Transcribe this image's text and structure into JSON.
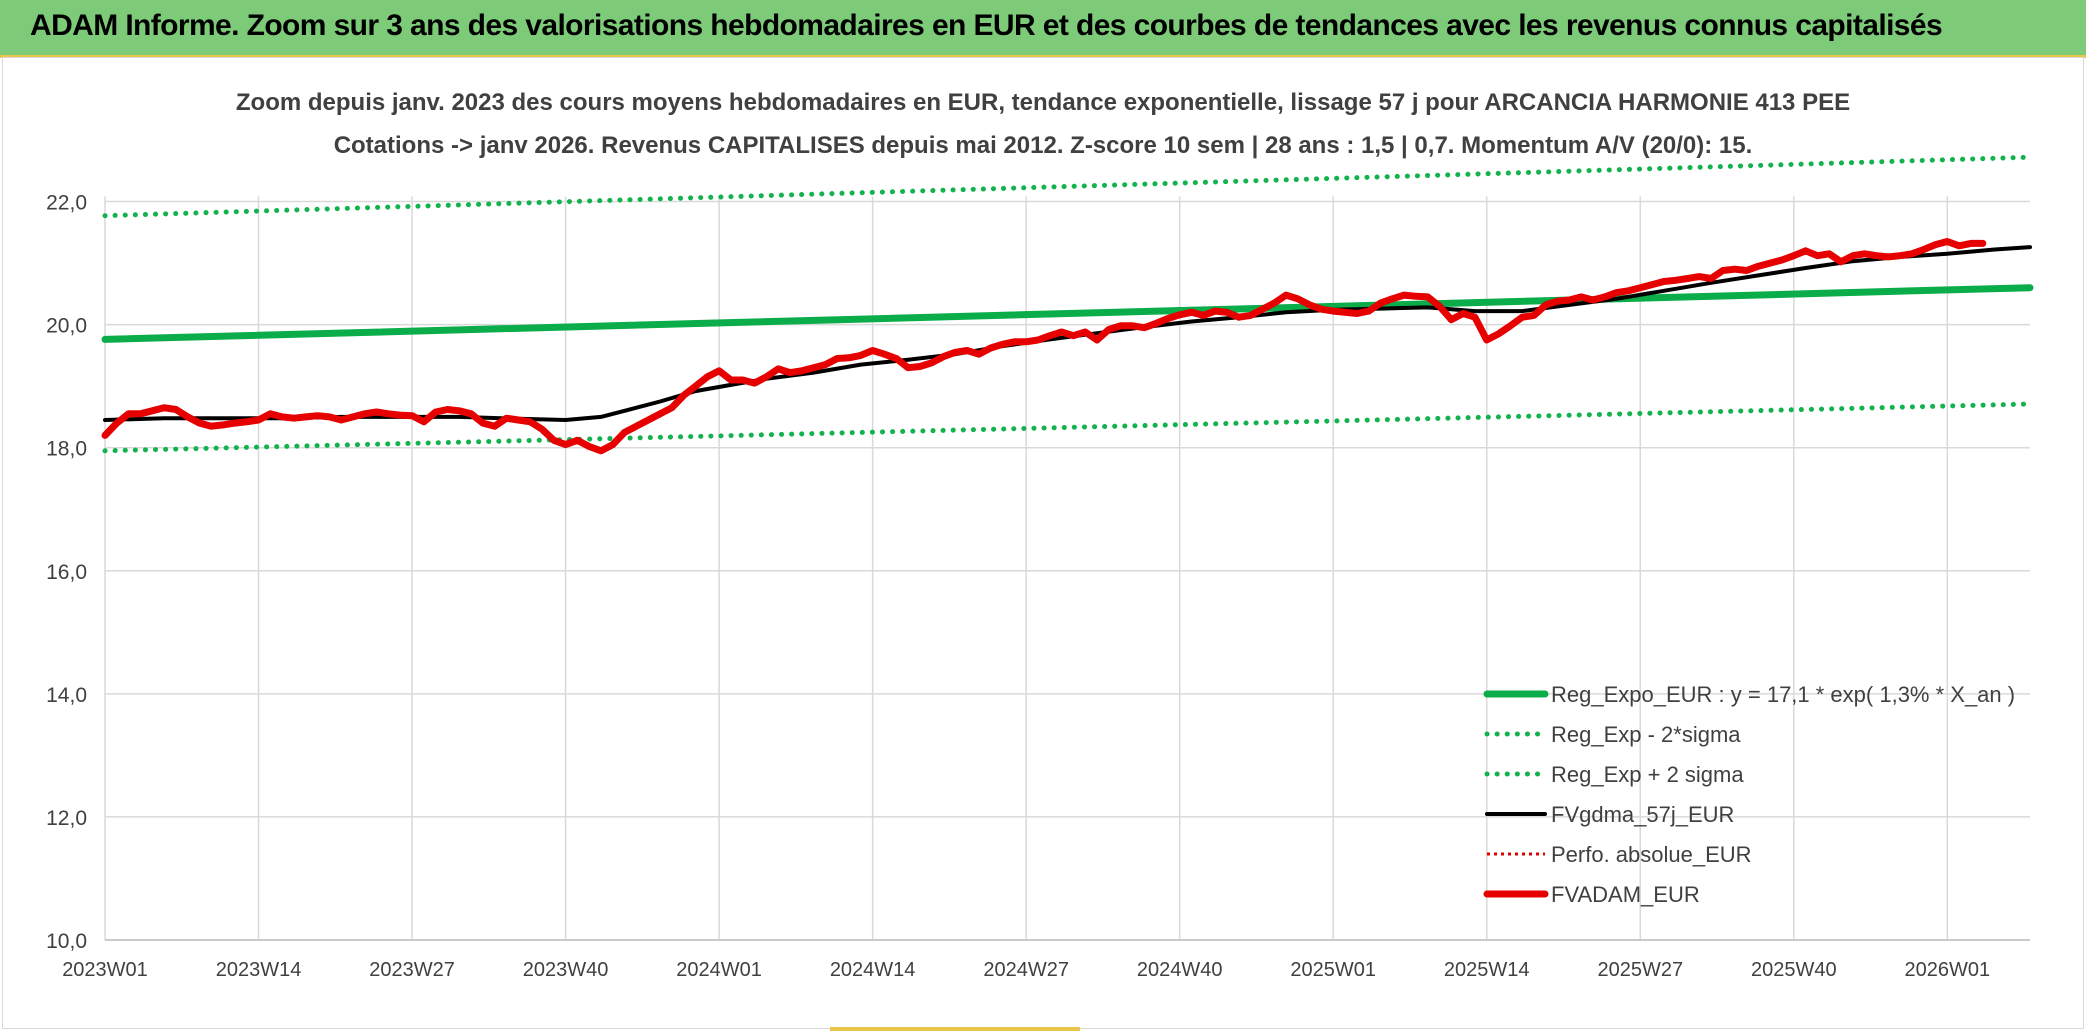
{
  "header": {
    "title": "ADAM Informe. Zoom sur 3 ans des valorisations hebdomadaires en EUR et des courbes de tendances avec les revenus connus capitalisés"
  },
  "colors": {
    "header_bg": "#7dcb78",
    "reg_expo": "#0aad4a",
    "sigma": "#12b24c",
    "fvgdma": "#000000",
    "perfo": "#e00000",
    "fvadam": "#e60000",
    "grid": "#d9d9d9",
    "text": "#404040"
  },
  "chart_data": {
    "type": "line",
    "title": "Zoom depuis janv. 2023 des cours moyens hebdomadaires en EUR, tendance exponentielle, lissage 57 j pour ARCANCIA HARMONIE 413 PEE",
    "subtitle": "Cotations -> janv 2026. Revenus CAPITALISES depuis mai 2012. Z-score 10 sem | 28 ans : 1,5 | 0,7. Momentum A/V (20/0): 15.",
    "xlabel": "",
    "ylabel": "",
    "ylim": [
      10,
      23
    ],
    "yticks": [
      "10,0",
      "12,0",
      "14,0",
      "16,0",
      "18,0",
      "20,0",
      "22,0"
    ],
    "ytick_values": [
      10,
      12,
      14,
      16,
      18,
      20,
      22
    ],
    "x_range": [
      0,
      163
    ],
    "xticks": [
      {
        "i": 0,
        "label": "2023W01"
      },
      {
        "i": 13,
        "label": "2023W14"
      },
      {
        "i": 26,
        "label": "2023W27"
      },
      {
        "i": 39,
        "label": "2023W40"
      },
      {
        "i": 52,
        "label": "2024W01"
      },
      {
        "i": 65,
        "label": "2024W14"
      },
      {
        "i": 78,
        "label": "2024W27"
      },
      {
        "i": 91,
        "label": "2024W40"
      },
      {
        "i": 104,
        "label": "2025W01"
      },
      {
        "i": 117,
        "label": "2025W14"
      },
      {
        "i": 130,
        "label": "2025W27"
      },
      {
        "i": 143,
        "label": "2025W40"
      },
      {
        "i": 156,
        "label": "2026W01"
      }
    ],
    "grid": true,
    "legend_position": "bottom-right",
    "series": [
      {
        "name": "Reg_Expo_EUR : y = 17,1 * exp( 1,3% *  X_an )",
        "style": "solid-thick",
        "color": "#0aad4a",
        "points": [
          [
            0,
            19.76
          ],
          [
            163,
            20.6
          ]
        ]
      },
      {
        "name": "Reg_Exp - 2*sigma",
        "style": "dotted",
        "color": "#12b24c",
        "points": [
          [
            0,
            17.95
          ],
          [
            163,
            18.71
          ]
        ]
      },
      {
        "name": "Reg_Exp + 2 sigma",
        "style": "dotted",
        "color": "#12b24c",
        "points": [
          [
            0,
            21.77
          ],
          [
            163,
            22.72
          ]
        ]
      },
      {
        "name": "FVgdma_57j_EUR",
        "style": "solid",
        "color": "#000000",
        "points": [
          [
            0,
            18.45
          ],
          [
            5,
            18.48
          ],
          [
            10,
            18.48
          ],
          [
            15,
            18.48
          ],
          [
            20,
            18.5
          ],
          [
            25,
            18.5
          ],
          [
            30,
            18.5
          ],
          [
            35,
            18.47
          ],
          [
            39,
            18.45
          ],
          [
            42,
            18.5
          ],
          [
            44,
            18.6
          ],
          [
            47,
            18.75
          ],
          [
            50,
            18.92
          ],
          [
            53,
            19.02
          ],
          [
            56,
            19.12
          ],
          [
            60,
            19.22
          ],
          [
            64,
            19.35
          ],
          [
            68,
            19.43
          ],
          [
            72,
            19.52
          ],
          [
            76,
            19.65
          ],
          [
            80,
            19.76
          ],
          [
            84,
            19.86
          ],
          [
            88,
            19.96
          ],
          [
            92,
            20.05
          ],
          [
            96,
            20.12
          ],
          [
            100,
            20.2
          ],
          [
            104,
            20.24
          ],
          [
            108,
            20.26
          ],
          [
            112,
            20.28
          ],
          [
            116,
            20.22
          ],
          [
            120,
            20.22
          ],
          [
            124,
            20.32
          ],
          [
            128,
            20.42
          ],
          [
            132,
            20.55
          ],
          [
            136,
            20.68
          ],
          [
            140,
            20.8
          ],
          [
            144,
            20.92
          ],
          [
            148,
            21.03
          ],
          [
            152,
            21.1
          ],
          [
            156,
            21.15
          ],
          [
            160,
            21.22
          ],
          [
            163,
            21.26
          ]
        ]
      },
      {
        "name": "Perfo. absolue_EUR",
        "style": "dotted-thin",
        "color": "#e00000",
        "points": []
      },
      {
        "name": "FVADAM_EUR",
        "style": "solid-thick",
        "color": "#e60000",
        "points": [
          [
            0,
            18.2
          ],
          [
            1,
            18.4
          ],
          [
            2,
            18.55
          ],
          [
            3,
            18.55
          ],
          [
            4,
            18.6
          ],
          [
            5,
            18.65
          ],
          [
            6,
            18.62
          ],
          [
            7,
            18.5
          ],
          [
            8,
            18.4
          ],
          [
            9,
            18.35
          ],
          [
            10,
            18.37
          ],
          [
            11,
            18.4
          ],
          [
            12,
            18.42
          ],
          [
            13,
            18.45
          ],
          [
            14,
            18.55
          ],
          [
            15,
            18.5
          ],
          [
            16,
            18.48
          ],
          [
            17,
            18.5
          ],
          [
            18,
            18.52
          ],
          [
            19,
            18.5
          ],
          [
            20,
            18.45
          ],
          [
            21,
            18.5
          ],
          [
            22,
            18.55
          ],
          [
            23,
            18.58
          ],
          [
            24,
            18.55
          ],
          [
            25,
            18.53
          ],
          [
            26,
            18.52
          ],
          [
            27,
            18.42
          ],
          [
            28,
            18.58
          ],
          [
            29,
            18.62
          ],
          [
            30,
            18.6
          ],
          [
            31,
            18.55
          ],
          [
            32,
            18.4
          ],
          [
            33,
            18.35
          ],
          [
            34,
            18.48
          ],
          [
            35,
            18.45
          ],
          [
            36,
            18.42
          ],
          [
            37,
            18.3
          ],
          [
            38,
            18.12
          ],
          [
            39,
            18.05
          ],
          [
            40,
            18.12
          ],
          [
            41,
            18.02
          ],
          [
            42,
            17.95
          ],
          [
            43,
            18.05
          ],
          [
            44,
            18.25
          ],
          [
            45,
            18.35
          ],
          [
            46,
            18.45
          ],
          [
            47,
            18.55
          ],
          [
            48,
            18.65
          ],
          [
            49,
            18.85
          ],
          [
            50,
            19.0
          ],
          [
            51,
            19.15
          ],
          [
            52,
            19.25
          ],
          [
            53,
            19.1
          ],
          [
            54,
            19.1
          ],
          [
            55,
            19.05
          ],
          [
            56,
            19.15
          ],
          [
            57,
            19.28
          ],
          [
            58,
            19.22
          ],
          [
            59,
            19.25
          ],
          [
            60,
            19.3
          ],
          [
            61,
            19.35
          ],
          [
            62,
            19.45
          ],
          [
            63,
            19.46
          ],
          [
            64,
            19.5
          ],
          [
            65,
            19.58
          ],
          [
            66,
            19.52
          ],
          [
            67,
            19.45
          ],
          [
            68,
            19.3
          ],
          [
            69,
            19.32
          ],
          [
            70,
            19.38
          ],
          [
            71,
            19.48
          ],
          [
            72,
            19.55
          ],
          [
            73,
            19.58
          ],
          [
            74,
            19.52
          ],
          [
            75,
            19.62
          ],
          [
            76,
            19.68
          ],
          [
            77,
            19.72
          ],
          [
            78,
            19.72
          ],
          [
            79,
            19.75
          ],
          [
            80,
            19.82
          ],
          [
            81,
            19.88
          ],
          [
            82,
            19.82
          ],
          [
            83,
            19.88
          ],
          [
            84,
            19.75
          ],
          [
            85,
            19.92
          ],
          [
            86,
            19.98
          ],
          [
            87,
            19.98
          ],
          [
            88,
            19.95
          ],
          [
            89,
            20.02
          ],
          [
            90,
            20.1
          ],
          [
            91,
            20.16
          ],
          [
            92,
            20.2
          ],
          [
            93,
            20.15
          ],
          [
            94,
            20.22
          ],
          [
            95,
            20.2
          ],
          [
            96,
            20.12
          ],
          [
            97,
            20.15
          ],
          [
            98,
            20.25
          ],
          [
            99,
            20.35
          ],
          [
            100,
            20.48
          ],
          [
            101,
            20.42
          ],
          [
            102,
            20.32
          ],
          [
            103,
            20.25
          ],
          [
            104,
            20.22
          ],
          [
            105,
            20.2
          ],
          [
            106,
            20.18
          ],
          [
            107,
            20.22
          ],
          [
            108,
            20.35
          ],
          [
            109,
            20.42
          ],
          [
            110,
            20.48
          ],
          [
            111,
            20.46
          ],
          [
            112,
            20.45
          ],
          [
            113,
            20.3
          ],
          [
            114,
            20.08
          ],
          [
            115,
            20.18
          ],
          [
            116,
            20.12
          ],
          [
            117,
            19.75
          ],
          [
            118,
            19.85
          ],
          [
            119,
            19.98
          ],
          [
            120,
            20.12
          ],
          [
            121,
            20.15
          ],
          [
            122,
            20.32
          ],
          [
            123,
            20.38
          ],
          [
            124,
            20.4
          ],
          [
            125,
            20.45
          ],
          [
            126,
            20.4
          ],
          [
            127,
            20.45
          ],
          [
            128,
            20.52
          ],
          [
            129,
            20.55
          ],
          [
            130,
            20.6
          ],
          [
            131,
            20.65
          ],
          [
            132,
            20.7
          ],
          [
            133,
            20.72
          ],
          [
            134,
            20.75
          ],
          [
            135,
            20.78
          ],
          [
            136,
            20.75
          ],
          [
            137,
            20.88
          ],
          [
            138,
            20.9
          ],
          [
            139,
            20.88
          ],
          [
            140,
            20.95
          ],
          [
            141,
            21.0
          ],
          [
            142,
            21.05
          ],
          [
            143,
            21.12
          ],
          [
            144,
            21.2
          ],
          [
            145,
            21.12
          ],
          [
            146,
            21.15
          ],
          [
            147,
            21.02
          ],
          [
            148,
            21.12
          ],
          [
            149,
            21.15
          ],
          [
            150,
            21.12
          ],
          [
            151,
            21.1
          ],
          [
            152,
            21.12
          ],
          [
            153,
            21.15
          ],
          [
            154,
            21.22
          ],
          [
            155,
            21.3
          ],
          [
            156,
            21.35
          ],
          [
            157,
            21.28
          ],
          [
            158,
            21.32
          ],
          [
            159,
            21.32
          ]
        ]
      }
    ]
  }
}
